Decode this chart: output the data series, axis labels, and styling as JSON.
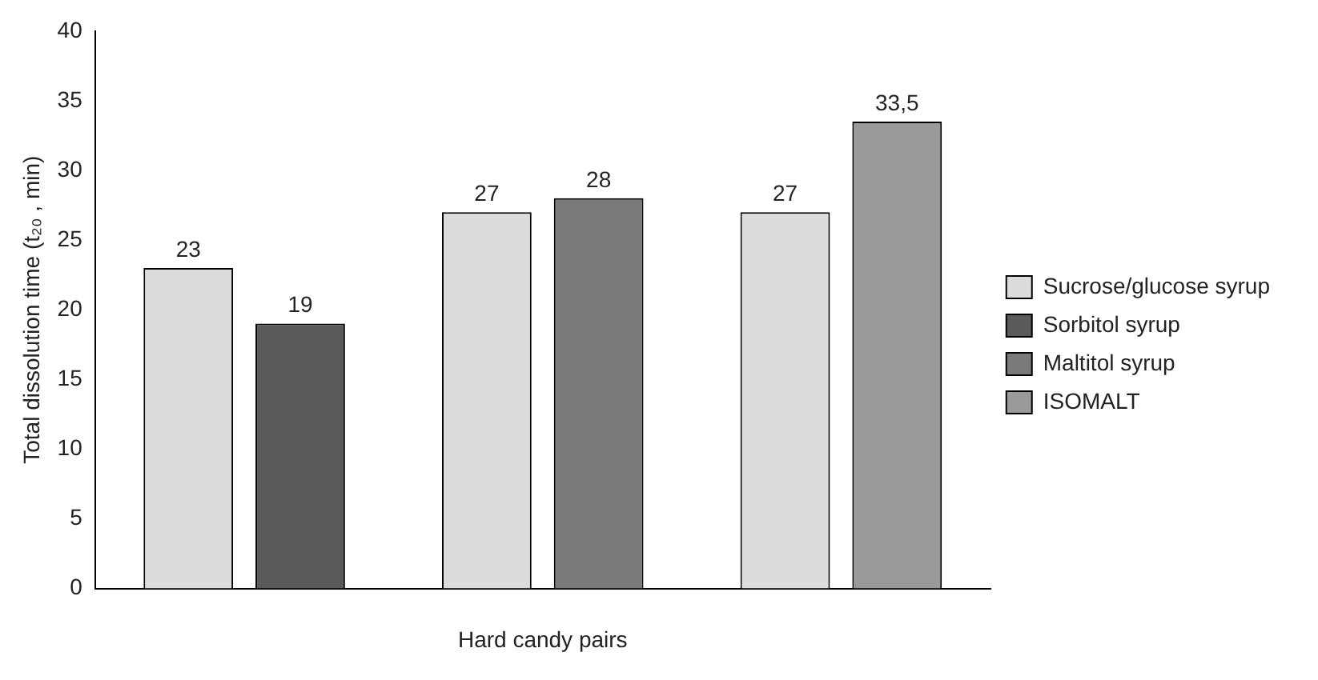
{
  "chart_data": {
    "type": "bar",
    "xlabel": "Hard candy pairs",
    "ylabel": "Total dissolution time (t₂₀ , min)",
    "categories": [
      null,
      null,
      null
    ],
    "series": [
      {
        "name": "Sucrose/glucose syrup",
        "color": "#dcdcdc",
        "values": [
          23,
          27,
          27
        ],
        "value_labels": [
          "23",
          "27",
          "27"
        ]
      },
      {
        "name": "Sorbitol syrup",
        "color": "#5a5a5a",
        "values": [
          19,
          null,
          null
        ],
        "value_labels": [
          "19",
          null,
          null
        ]
      },
      {
        "name": "Maltitol syrup",
        "color": "#7a7a7a",
        "values": [
          null,
          28,
          null
        ],
        "value_labels": [
          null,
          "28",
          null
        ]
      },
      {
        "name": "ISOMALT",
        "color": "#9a9a9a",
        "values": [
          null,
          null,
          33.5
        ],
        "value_labels": [
          null,
          null,
          "33,5"
        ]
      }
    ],
    "ylim": [
      0,
      40
    ],
    "yticks": [
      0,
      5,
      10,
      15,
      20,
      25,
      30,
      35,
      40
    ],
    "grid": false,
    "legend": "right"
  }
}
